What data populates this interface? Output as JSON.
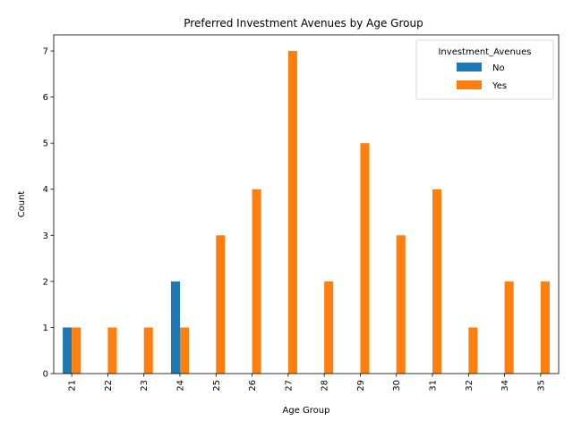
{
  "chart_data": {
    "type": "bar",
    "title": "Preferred Investment Avenues by Age Group",
    "xlabel": "Age Group",
    "ylabel": "Count",
    "categories": [
      "21",
      "22",
      "23",
      "24",
      "25",
      "26",
      "27",
      "28",
      "29",
      "30",
      "31",
      "32",
      "34",
      "35"
    ],
    "series": [
      {
        "name": "No",
        "color": "#1f77b4",
        "values": [
          1,
          0,
          0,
          2,
          0,
          0,
          0,
          0,
          0,
          0,
          0,
          0,
          0,
          0
        ]
      },
      {
        "name": "Yes",
        "color": "#ff7f0e",
        "values": [
          1,
          1,
          1,
          1,
          3,
          4,
          7,
          2,
          5,
          3,
          4,
          1,
          2,
          2
        ]
      }
    ],
    "ylim": [
      0,
      7.35
    ],
    "yticks": [
      0,
      1,
      2,
      3,
      4,
      5,
      6,
      7
    ],
    "grid": false,
    "legend": {
      "title": "Investment_Avenues",
      "placement": "top-right"
    },
    "xtick_rotation": 90
  }
}
